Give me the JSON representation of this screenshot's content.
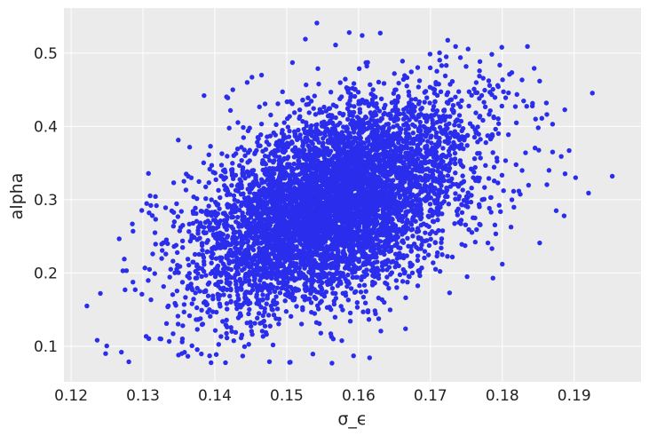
{
  "chart_data": {
    "type": "scatter",
    "xlabel": "σ_ϵ",
    "ylabel": "alpha",
    "xlim": [
      0.119,
      0.1993
    ],
    "ylim": [
      0.0515,
      0.5615
    ],
    "xticks": [
      0.12,
      0.13,
      0.14,
      0.15,
      0.16,
      0.17,
      0.18,
      0.19
    ],
    "yticks": [
      0.1,
      0.2,
      0.3,
      0.4,
      0.5
    ],
    "xtick_labels": [
      "0.12",
      "0.13",
      "0.14",
      "0.15",
      "0.16",
      "0.17",
      "0.18",
      "0.19"
    ],
    "ytick_labels": [
      "0.1",
      "0.2",
      "0.3",
      "0.4",
      "0.5"
    ],
    "grid": true,
    "background_color": "#ebebeb",
    "grid_color": "#ffffff",
    "marker_color": "#2a2eec",
    "n_points": 6000,
    "distribution": {
      "mean": [
        0.1565,
        0.293
      ],
      "std": [
        0.0095,
        0.072
      ],
      "correlation": 0.5
    },
    "points": [
      [
        0.1222,
        0.155
      ],
      [
        0.1248,
        0.09
      ],
      [
        0.127,
        0.092
      ],
      [
        0.1272,
        0.203
      ],
      [
        0.1274,
        0.219
      ],
      [
        0.1325,
        0.11
      ],
      [
        0.1385,
        0.442
      ],
      [
        0.1425,
        0.45
      ],
      [
        0.1445,
        0.46
      ],
      [
        0.1465,
        0.47
      ],
      [
        0.1476,
        0.079
      ],
      [
        0.1504,
        0.078
      ],
      [
        0.1508,
        0.487
      ],
      [
        0.1526,
        0.519
      ],
      [
        0.1542,
        0.541
      ],
      [
        0.1563,
        0.077
      ],
      [
        0.1568,
        0.511
      ],
      [
        0.1587,
        0.528
      ],
      [
        0.1593,
        0.087
      ],
      [
        0.1605,
        0.524
      ],
      [
        0.1735,
        0.509
      ],
      [
        0.1772,
        0.3
      ],
      [
        0.181,
        0.471
      ],
      [
        0.1835,
        0.509
      ],
      [
        0.185,
        0.398
      ],
      [
        0.1852,
        0.241
      ],
      [
        0.1855,
        0.411
      ],
      [
        0.1865,
        0.34
      ],
      [
        0.1875,
        0.285
      ],
      [
        0.187,
        0.365
      ],
      [
        0.1882,
        0.359
      ],
      [
        0.1886,
        0.278
      ],
      [
        0.1893,
        0.367
      ],
      [
        0.1902,
        0.33
      ],
      [
        0.192,
        0.309
      ],
      [
        0.1953,
        0.332
      ],
      [
        0.1787,
        0.193
      ],
      [
        0.18,
        0.212
      ],
      [
        0.178,
        0.241
      ],
      [
        0.1751,
        0.195
      ]
    ]
  }
}
